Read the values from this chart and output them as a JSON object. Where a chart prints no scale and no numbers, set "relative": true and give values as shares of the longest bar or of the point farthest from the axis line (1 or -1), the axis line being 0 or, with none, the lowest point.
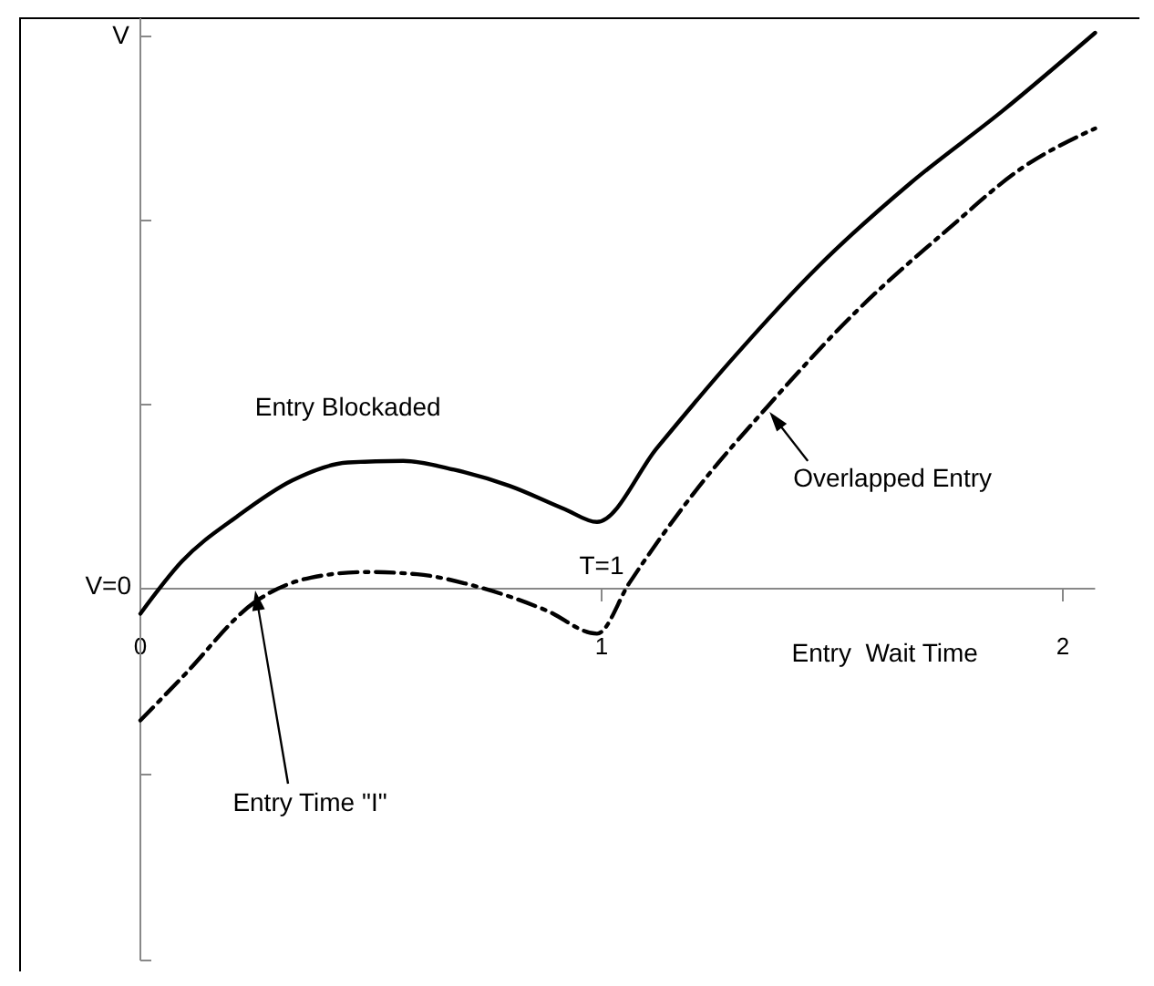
{
  "chart_data": {
    "type": "line",
    "relative": true,
    "xlabel": "Entry  Wait Time",
    "ylabel": "V",
    "xlim": [
      0,
      2.07
    ],
    "xticks": [
      0,
      1,
      2
    ],
    "series": [
      {
        "name": "Entry Blockaded",
        "color": "#000000",
        "line_style": "solid",
        "x": [
          0,
          0.09,
          0.21,
          0.33,
          0.45,
          0.57,
          0.68,
          0.8,
          0.92,
          0.99,
          1.12,
          1.28,
          1.47,
          1.67,
          1.87,
          2.07
        ],
        "values": [
          -0.045,
          0.049,
          0.13,
          0.195,
          0.227,
          0.23,
          0.214,
          0.185,
          0.143,
          0.12,
          0.253,
          0.41,
          0.58,
          0.73,
          0.86,
          1
        ]
      },
      {
        "name": "Overlapped Entry",
        "color": "#000000",
        "line_style": "dashed",
        "x": [
          0,
          0.09,
          0.25,
          0.37,
          0.49,
          0.6,
          0.72,
          0.88,
          0.99,
          1.06,
          1.2,
          1.36,
          1.55,
          1.75,
          1.91,
          2.07
        ],
        "values": [
          -0.237,
          -0.16,
          -0.023,
          0.02,
          0.03,
          0.026,
          0.006,
          -0.039,
          -0.081,
          0.01,
          0.172,
          0.328,
          0.497,
          0.646,
          0.756,
          0.828
        ]
      }
    ],
    "annotations": [
      "V=0",
      "T=1",
      "Entry Time \"I\""
    ]
  }
}
